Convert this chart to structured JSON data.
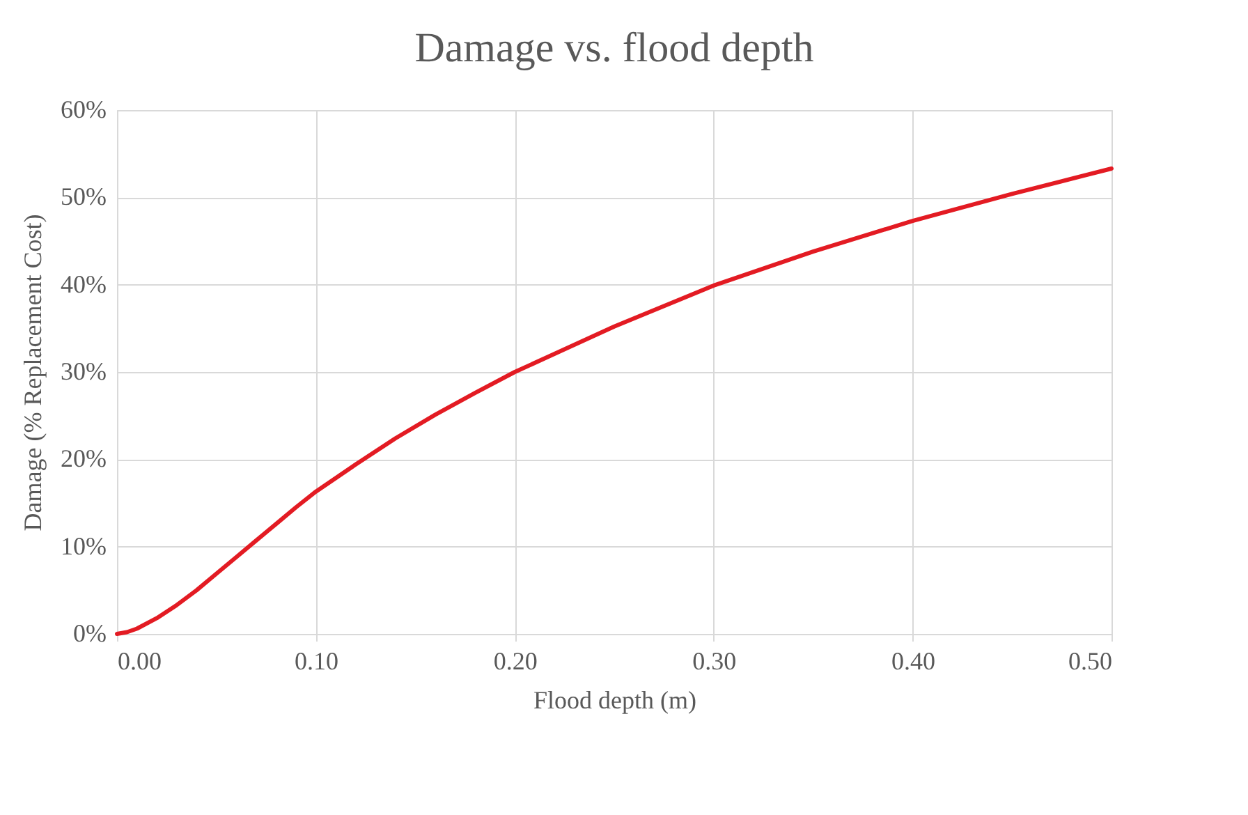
{
  "chart_data": {
    "type": "line",
    "title": "Damage vs. flood depth",
    "xlabel": "Flood depth (m)",
    "ylabel": "Damage (% Replacement Cost)",
    "x": [
      0,
      0.005,
      0.01,
      0.02,
      0.03,
      0.04,
      0.05,
      0.06,
      0.07,
      0.08,
      0.09,
      0.1,
      0.12,
      0.14,
      0.16,
      0.18,
      0.2,
      0.25,
      0.3,
      0.35,
      0.4,
      0.45,
      0.5
    ],
    "series": [
      {
        "color": "#e31b23",
        "values": [
          0,
          0.2,
          0.6,
          1.8,
          3.3,
          5.0,
          6.9,
          8.8,
          10.7,
          12.6,
          14.5,
          16.3,
          19.4,
          22.4,
          25.1,
          27.6,
          30.0,
          35.2,
          39.9,
          43.8,
          47.3,
          50.4,
          53.3
        ]
      }
    ],
    "xlim": [
      0,
      0.5
    ],
    "xticks": [
      {
        "value": 0,
        "label": "0.00"
      },
      {
        "value": 0.1,
        "label": "0.10"
      },
      {
        "value": 0.2,
        "label": "0.20"
      },
      {
        "value": 0.3,
        "label": "0.30"
      },
      {
        "value": 0.4,
        "label": "0.40"
      },
      {
        "value": 0.5,
        "label": "0.50"
      }
    ],
    "ylim": [
      0,
      60
    ],
    "yticks": [
      {
        "value": 0,
        "label": "0%"
      },
      {
        "value": 10,
        "label": "10%"
      },
      {
        "value": 20,
        "label": "20%"
      },
      {
        "value": 30,
        "label": "30%"
      },
      {
        "value": 40,
        "label": "40%"
      },
      {
        "value": 50,
        "label": "50%"
      },
      {
        "value": 60,
        "label": "60%"
      }
    ],
    "grid": true,
    "marker": "none",
    "line_style": "solid"
  }
}
